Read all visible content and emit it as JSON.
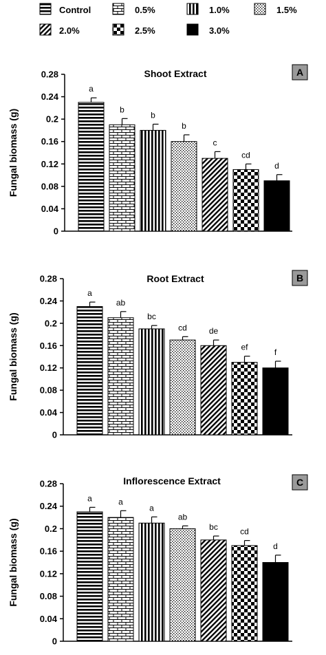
{
  "legend": {
    "items": [
      {
        "label": "Control",
        "pattern": "hlines"
      },
      {
        "label": "0.5%",
        "pattern": "brick"
      },
      {
        "label": "1.0%",
        "pattern": "vlines"
      },
      {
        "label": "1.5%",
        "pattern": "dots"
      },
      {
        "label": "2.0%",
        "pattern": "diag"
      },
      {
        "label": "2.5%",
        "pattern": "checker"
      },
      {
        "label": "3.0%",
        "pattern": "solid"
      }
    ]
  },
  "chart_data": [
    {
      "type": "bar",
      "panel": "A",
      "title": "Shoot Extract",
      "ylabel": "Fungal biomass (g)",
      "ylim": [
        0,
        0.28
      ],
      "yticks": [
        "0",
        "0.04",
        "0.08",
        "0.12",
        "0.16",
        "0.2",
        "0.24",
        "0.28"
      ],
      "categories": [
        "Control",
        "0.5%",
        "1.0%",
        "1.5%",
        "2.0%",
        "2.5%",
        "3.0%"
      ],
      "values": [
        0.23,
        0.19,
        0.18,
        0.16,
        0.13,
        0.11,
        0.09
      ],
      "errors": [
        0.008,
        0.011,
        0.011,
        0.012,
        0.012,
        0.01,
        0.011
      ],
      "letters": [
        "a",
        "b",
        "b",
        "b",
        "c",
        "cd",
        "d"
      ]
    },
    {
      "type": "bar",
      "panel": "B",
      "title": "Root Extract",
      "ylabel": "Fungal biomass (g)",
      "ylim": [
        0,
        0.28
      ],
      "yticks": [
        "0",
        "0.04",
        "0.08",
        "0.12",
        "0.16",
        "0.2",
        "0.24",
        "0.28"
      ],
      "categories": [
        "Control",
        "0.5%",
        "1.0%",
        "1.5%",
        "2.0%",
        "2.5%",
        "3.0%"
      ],
      "values": [
        0.23,
        0.21,
        0.19,
        0.17,
        0.16,
        0.13,
        0.12
      ],
      "errors": [
        0.008,
        0.011,
        0.006,
        0.006,
        0.01,
        0.011,
        0.012
      ],
      "letters": [
        "a",
        "ab",
        "bc",
        "cd",
        "de",
        "ef",
        "f"
      ]
    },
    {
      "type": "bar",
      "panel": "C",
      "title": "Inflorescence Extract",
      "ylabel": "Fungal biomass (g)",
      "ylim": [
        0,
        0.28
      ],
      "yticks": [
        "0",
        "0.04",
        "0.08",
        "0.12",
        "0.16",
        "0.2",
        "0.24",
        "0.28"
      ],
      "categories": [
        "Control",
        "0.5%",
        "1.0%",
        "1.5%",
        "2.0%",
        "2.5%",
        "3.0%"
      ],
      "values": [
        0.23,
        0.22,
        0.21,
        0.2,
        0.18,
        0.17,
        0.14
      ],
      "errors": [
        0.008,
        0.012,
        0.011,
        0.005,
        0.007,
        0.009,
        0.013
      ],
      "letters": [
        "a",
        "a",
        "a",
        "ab",
        "bc",
        "cd",
        "d"
      ]
    }
  ]
}
